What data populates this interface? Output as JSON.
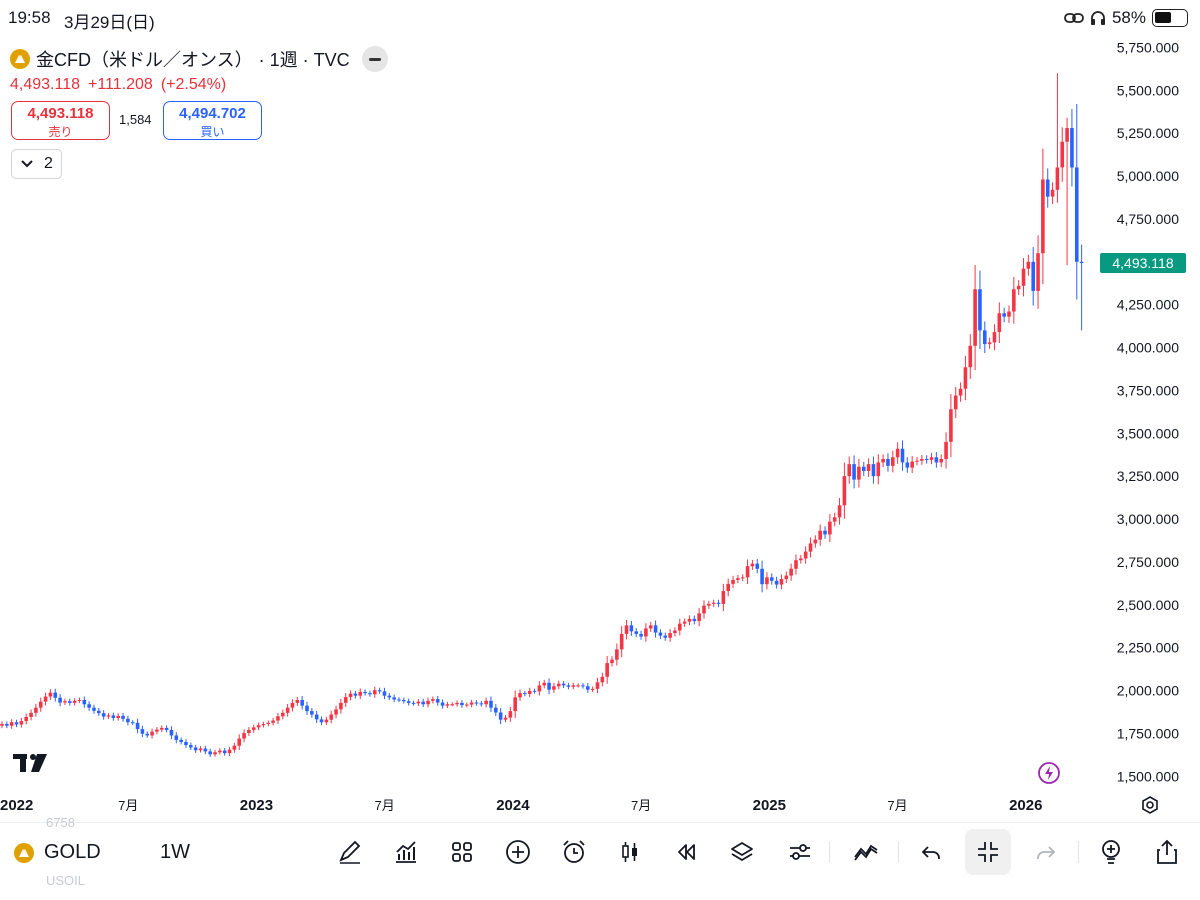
{
  "status_bar": {
    "time": "19:58",
    "date": "3月29日(日)",
    "battery": "58%"
  },
  "symbol": {
    "name": "金CFD（米ドル／オンス）",
    "meta": "· 1週 · TVC",
    "last_price": "4,493.118",
    "change": "+111.208",
    "change_pct": "(+2.54%)"
  },
  "trade": {
    "sell_price": "4,493.118",
    "sell_label": "売り",
    "spread": "1,584",
    "buy_price": "4,494.702",
    "buy_label": "買い"
  },
  "indicators_toggle": {
    "count": "2"
  },
  "toolbar": {
    "symbol": "GOLD",
    "interval": "1W",
    "ghost_top": "6758",
    "ghost_bottom": "USOIL"
  },
  "colors": {
    "up": "#f23645",
    "down": "#2962ff",
    "last_price_tag": "#089981"
  },
  "chart_data": {
    "type": "candlestick",
    "symbol": "金CFD（米ドル／オンス）",
    "interval": "1W",
    "y_axis": {
      "ticks": [
        1500,
        1750,
        2000,
        2250,
        2500,
        2750,
        3000,
        3250,
        3500,
        3750,
        4000,
        4250,
        4500,
        4750,
        5000,
        5250,
        5500,
        5750
      ],
      "tick_labels": [
        "1,500.000",
        "1,750.000",
        "2,000.000",
        "2,250.000",
        "2,500.000",
        "2,750.000",
        "3,000.000",
        "3,250.000",
        "3,500.000",
        "3,750.000",
        "4,000.000",
        "4,250.000",
        "4,500.000",
        "4,750.000",
        "5,000.000",
        "5,250.000",
        "5,500.000",
        "5,750.000"
      ],
      "range": [
        1420,
        5770
      ],
      "position": "right"
    },
    "x_axis": {
      "range_years": [
        2022.0,
        2026.27
      ],
      "ticks": [
        {
          "t": 2022.0,
          "label": "2022",
          "bold": true
        },
        {
          "t": 2022.5,
          "label": "7月",
          "bold": false
        },
        {
          "t": 2023.0,
          "label": "2023",
          "bold": true
        },
        {
          "t": 2023.5,
          "label": "7月",
          "bold": false
        },
        {
          "t": 2024.0,
          "label": "2024",
          "bold": true
        },
        {
          "t": 2024.5,
          "label": "7月",
          "bold": false
        },
        {
          "t": 2025.0,
          "label": "2025",
          "bold": true
        },
        {
          "t": 2025.5,
          "label": "7月",
          "bold": false
        },
        {
          "t": 2026.0,
          "label": "2026",
          "bold": true
        }
      ]
    },
    "last_price_label": "4,493.118",
    "last_price_value": 4493.118,
    "closes_weekly": [
      1805,
      1795,
      1815,
      1802,
      1822,
      1846,
      1870,
      1900,
      1935,
      1965,
      1988,
      1958,
      1930,
      1938,
      1928,
      1940,
      1945,
      1920,
      1900,
      1882,
      1868,
      1848,
      1855,
      1840,
      1852,
      1835,
      1815,
      1812,
      1775,
      1748,
      1738,
      1760,
      1772,
      1782,
      1770,
      1738,
      1712,
      1700,
      1682,
      1668,
      1652,
      1662,
      1645,
      1628,
      1640,
      1650,
      1635,
      1655,
      1678,
      1720,
      1752,
      1770,
      1785,
      1798,
      1805,
      1812,
      1825,
      1850,
      1870,
      1900,
      1928,
      1945,
      1912,
      1880,
      1860,
      1832,
      1815,
      1830,
      1860,
      1890,
      1928,
      1962,
      1982,
      1970,
      1992,
      1985,
      1978,
      2002,
      1995,
      1970,
      1960,
      1948,
      1945,
      1938,
      1928,
      1925,
      1935,
      1920,
      1940,
      1950,
      1930,
      1912,
      1920,
      1920,
      1928,
      1915,
      1918,
      1930,
      1925,
      1920,
      1940,
      1900,
      1872,
      1830,
      1842,
      1880,
      1960,
      1985,
      1980,
      1998,
      1995,
      2030,
      2045,
      2005,
      2025,
      2040,
      2030,
      2022,
      2030,
      2030,
      2025,
      2005,
      2010,
      2048,
      2080,
      2160,
      2180,
      2240,
      2330,
      2380,
      2345,
      2330,
      2315,
      2362,
      2380,
      2338,
      2320,
      2308,
      2335,
      2350,
      2390,
      2402,
      2418,
      2405,
      2450,
      2495,
      2505,
      2512,
      2505,
      2580,
      2622,
      2645,
      2655,
      2660,
      2725,
      2740,
      2710,
      2620,
      2660,
      2640,
      2618,
      2650,
      2670,
      2710,
      2760,
      2770,
      2810,
      2858,
      2880,
      2932,
      2910,
      2985,
      3010,
      3080,
      3250,
      3320,
      3230,
      3305,
      3280,
      3320,
      3250,
      3330,
      3350,
      3310,
      3360,
      3410,
      3330,
      3300,
      3335,
      3340,
      3350,
      3345,
      3360,
      3330,
      3350,
      3450,
      3640,
      3720,
      3760,
      3885,
      4010,
      4340,
      4100,
      4020,
      4030,
      4090,
      4200,
      4180,
      4210,
      4340,
      4360,
      4460,
      4500,
      4330,
      4550,
      4980,
      4880,
      4920,
      5050,
      5200,
      5280,
      5050,
      4500,
      4493.118
    ],
    "notes": "Weekly OHLC candles read approximately from the chart; closes listed, opens equal prior close; wick peaks ~5,600 (Jan 2026) and lows ~4,100 (latest week)."
  }
}
